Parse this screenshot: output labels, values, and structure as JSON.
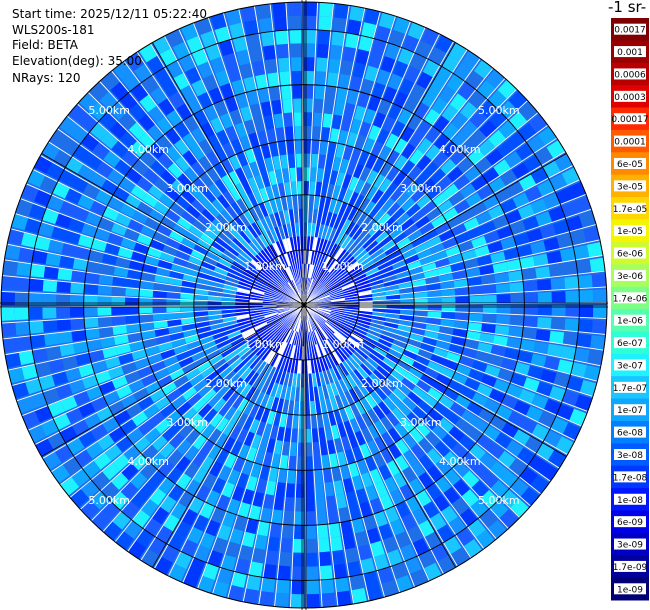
{
  "info": {
    "start_time": "Start time: 2025/12/11 05:22:40",
    "instrument": "WLS200s-181",
    "field": "Field: BETA",
    "elevation": "Elevation(deg): 35.00",
    "nrays": "NRays: 120"
  },
  "chart_data": {
    "type": "ppi-polar",
    "field": "BETA",
    "nrays": 120,
    "elevation_deg": 35.0,
    "max_range_km": 5.5,
    "range_rings_km": [
      1,
      2,
      3,
      4,
      5
    ],
    "ring_labels": [
      "1.00km",
      "2.00km",
      "3.00km",
      "4.00km",
      "5.00km"
    ],
    "colorbar_unit": "-1 sr-",
    "colorbar": {
      "tick_labels": [
        "0.0017",
        "0.001",
        "0.0006",
        "0.0003",
        "0.00017",
        "0.0001",
        "6e-05",
        "3e-05",
        "1.7e-05",
        "1e-05",
        "6e-06",
        "3e-06",
        "1.7e-06",
        "1e-06",
        "6e-07",
        "3e-07",
        "1.7e-07",
        "1e-07",
        "6e-08",
        "3e-08",
        "1.7e-08",
        "1e-08",
        "6e-09",
        "3e-09",
        "1.7e-09",
        "1e-09"
      ],
      "colors": [
        "#7f0000",
        "#9a0000",
        "#b80000",
        "#e00000",
        "#ff2a00",
        "#ff5a00",
        "#ff8a00",
        "#ffb000",
        "#ffd700",
        "#f5f500",
        "#cffa30",
        "#a6ff5c",
        "#7dff86",
        "#56ffb0",
        "#30ffd6",
        "#1ef2ff",
        "#19c6ff",
        "#0fa6ff",
        "#0080ff",
        "#005cff",
        "#0038ff",
        "#0016ff",
        "#0000e8",
        "#0000c4",
        "#00009c",
        "#000074"
      ]
    },
    "background_color": "#1e6fe8"
  }
}
